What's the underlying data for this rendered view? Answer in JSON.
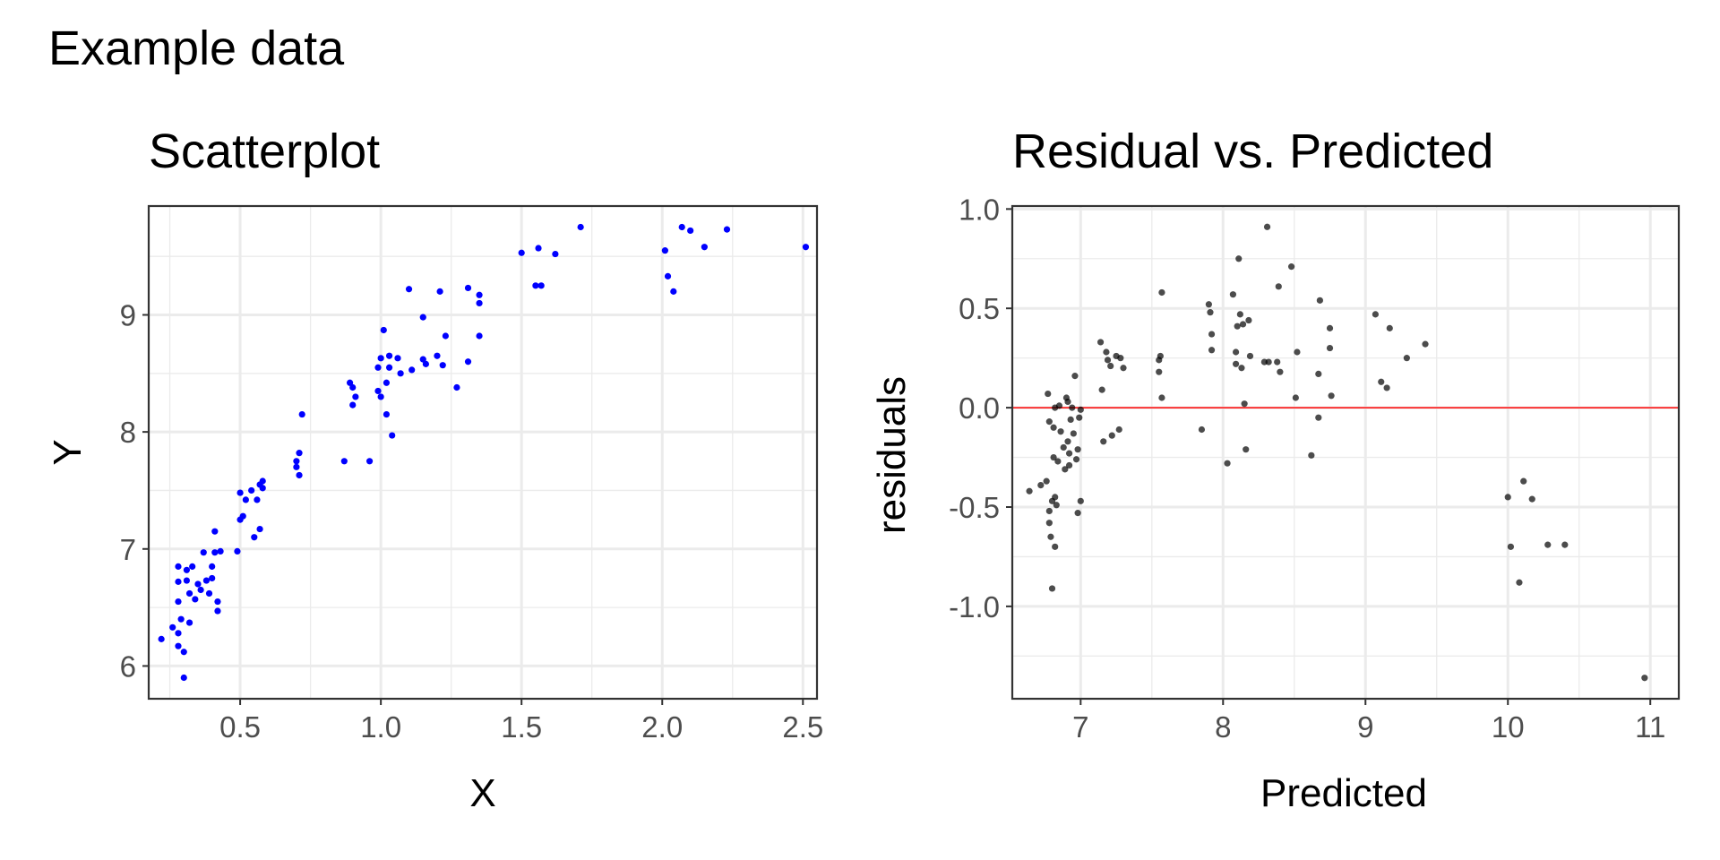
{
  "figure": {
    "title": "Example data"
  },
  "chart_data": [
    {
      "type": "scatter",
      "title": "Scatterplot",
      "xlabel": "X",
      "ylabel": "Y",
      "xlim": [
        0.175,
        2.55
      ],
      "ylim": [
        5.72,
        9.93
      ],
      "xticks": [
        0.5,
        1.0,
        1.5,
        2.0,
        2.5
      ],
      "xtick_labels": [
        "0.5",
        "1.0",
        "1.5",
        "2.0",
        "2.5"
      ],
      "yticks": [
        6,
        7,
        8,
        9
      ],
      "ytick_labels": [
        "6",
        "7",
        "8",
        "9"
      ],
      "grid": true,
      "point_color": "#0000ff",
      "points": [
        [
          0.22,
          6.23
        ],
        [
          0.26,
          6.33
        ],
        [
          0.28,
          6.85
        ],
        [
          0.28,
          6.72
        ],
        [
          0.28,
          6.55
        ],
        [
          0.28,
          6.28
        ],
        [
          0.28,
          6.17
        ],
        [
          0.29,
          6.4
        ],
        [
          0.3,
          5.9
        ],
        [
          0.3,
          6.12
        ],
        [
          0.31,
          6.82
        ],
        [
          0.31,
          6.73
        ],
        [
          0.32,
          6.62
        ],
        [
          0.32,
          6.37
        ],
        [
          0.33,
          6.85
        ],
        [
          0.34,
          6.57
        ],
        [
          0.35,
          6.7
        ],
        [
          0.36,
          6.65
        ],
        [
          0.37,
          6.97
        ],
        [
          0.38,
          6.73
        ],
        [
          0.39,
          6.62
        ],
        [
          0.4,
          6.85
        ],
        [
          0.4,
          6.75
        ],
        [
          0.41,
          7.15
        ],
        [
          0.41,
          6.97
        ],
        [
          0.42,
          6.47
        ],
        [
          0.42,
          6.55
        ],
        [
          0.43,
          6.98
        ],
        [
          0.49,
          6.98
        ],
        [
          0.5,
          7.25
        ],
        [
          0.5,
          7.48
        ],
        [
          0.51,
          7.28
        ],
        [
          0.52,
          7.42
        ],
        [
          0.54,
          7.5
        ],
        [
          0.55,
          7.1
        ],
        [
          0.56,
          7.42
        ],
        [
          0.57,
          7.17
        ],
        [
          0.57,
          7.55
        ],
        [
          0.58,
          7.58
        ],
        [
          0.58,
          7.52
        ],
        [
          0.7,
          7.75
        ],
        [
          0.7,
          7.7
        ],
        [
          0.71,
          7.82
        ],
        [
          0.71,
          7.63
        ],
        [
          0.72,
          8.15
        ],
        [
          0.87,
          7.75
        ],
        [
          0.89,
          8.42
        ],
        [
          0.9,
          8.38
        ],
        [
          0.9,
          8.23
        ],
        [
          0.91,
          8.3
        ],
        [
          0.96,
          7.75
        ],
        [
          0.99,
          8.55
        ],
        [
          0.99,
          8.35
        ],
        [
          1.0,
          8.63
        ],
        [
          1.0,
          8.3
        ],
        [
          1.01,
          8.87
        ],
        [
          1.02,
          8.42
        ],
        [
          1.02,
          8.15
        ],
        [
          1.03,
          8.55
        ],
        [
          1.03,
          8.65
        ],
        [
          1.04,
          7.97
        ],
        [
          1.06,
          8.63
        ],
        [
          1.07,
          8.5
        ],
        [
          1.1,
          9.22
        ],
        [
          1.11,
          8.53
        ],
        [
          1.15,
          8.98
        ],
        [
          1.15,
          8.62
        ],
        [
          1.16,
          8.58
        ],
        [
          1.2,
          8.65
        ],
        [
          1.21,
          9.2
        ],
        [
          1.22,
          8.57
        ],
        [
          1.23,
          8.82
        ],
        [
          1.27,
          8.38
        ],
        [
          1.31,
          8.6
        ],
        [
          1.31,
          9.23
        ],
        [
          1.35,
          9.17
        ],
        [
          1.35,
          9.1
        ],
        [
          1.35,
          8.82
        ],
        [
          1.5,
          9.53
        ],
        [
          1.55,
          9.25
        ],
        [
          1.56,
          9.57
        ],
        [
          1.57,
          9.25
        ],
        [
          1.62,
          9.52
        ],
        [
          1.71,
          9.75
        ],
        [
          2.01,
          9.55
        ],
        [
          2.02,
          9.33
        ],
        [
          2.04,
          9.2
        ],
        [
          2.07,
          9.75
        ],
        [
          2.1,
          9.72
        ],
        [
          2.15,
          9.58
        ],
        [
          2.23,
          9.73
        ],
        [
          2.51,
          9.58
        ]
      ]
    },
    {
      "type": "scatter",
      "title": "Residual vs. Predicted",
      "xlabel": "Predicted",
      "ylabel": "residuals",
      "xlim": [
        6.52,
        11.2
      ],
      "ylim": [
        -1.465,
        1.015
      ],
      "xticks": [
        7,
        8,
        9,
        10,
        11
      ],
      "xtick_labels": [
        "7",
        "8",
        "9",
        "10",
        "11"
      ],
      "yticks": [
        1.0,
        0.5,
        0.0,
        -0.5,
        -1.0
      ],
      "ytick_labels": [
        "1.0",
        "0.5",
        "0.0",
        "-0.5",
        "-1.0"
      ],
      "grid": true,
      "point_color": "#000000",
      "point_alpha": 0.7,
      "hline": {
        "y": 0,
        "color": "#ff0000"
      },
      "points": [
        [
          6.64,
          -0.42
        ],
        [
          6.72,
          -0.39
        ],
        [
          6.76,
          -0.37
        ],
        [
          6.77,
          0.07
        ],
        [
          6.78,
          -0.07
        ],
        [
          6.78,
          -0.52
        ],
        [
          6.78,
          -0.58
        ],
        [
          6.79,
          -0.65
        ],
        [
          6.8,
          -0.91
        ],
        [
          6.8,
          -0.47
        ],
        [
          6.81,
          -0.25
        ],
        [
          6.81,
          -0.1
        ],
        [
          6.82,
          0.0
        ],
        [
          6.82,
          -0.45
        ],
        [
          6.82,
          -0.7
        ],
        [
          6.83,
          -0.49
        ],
        [
          6.84,
          -0.27
        ],
        [
          6.85,
          0.01
        ],
        [
          6.86,
          -0.12
        ],
        [
          6.88,
          -0.2
        ],
        [
          6.89,
          -0.31
        ],
        [
          6.9,
          0.05
        ],
        [
          6.91,
          0.03
        ],
        [
          6.91,
          -0.17
        ],
        [
          6.92,
          -0.23
        ],
        [
          6.92,
          -0.29
        ],
        [
          6.93,
          -0.06
        ],
        [
          6.94,
          0.0
        ],
        [
          6.95,
          -0.13
        ],
        [
          6.96,
          0.16
        ],
        [
          6.97,
          -0.26
        ],
        [
          6.98,
          -0.21
        ],
        [
          6.98,
          -0.53
        ],
        [
          6.99,
          -0.05
        ],
        [
          7.0,
          -0.47
        ],
        [
          7.0,
          -0.01
        ],
        [
          7.14,
          0.33
        ],
        [
          7.15,
          0.09
        ],
        [
          7.16,
          -0.17
        ],
        [
          7.18,
          0.28
        ],
        [
          7.19,
          0.24
        ],
        [
          7.21,
          0.21
        ],
        [
          7.22,
          -0.14
        ],
        [
          7.25,
          0.26
        ],
        [
          7.27,
          -0.11
        ],
        [
          7.28,
          0.25
        ],
        [
          7.3,
          0.2
        ],
        [
          7.55,
          0.24
        ],
        [
          7.55,
          0.18
        ],
        [
          7.56,
          0.26
        ],
        [
          7.57,
          0.05
        ],
        [
          7.57,
          0.58
        ],
        [
          7.85,
          -0.11
        ],
        [
          7.9,
          0.52
        ],
        [
          7.91,
          0.48
        ],
        [
          7.92,
          0.29
        ],
        [
          7.92,
          0.37
        ],
        [
          8.03,
          -0.28
        ],
        [
          8.07,
          0.57
        ],
        [
          8.09,
          0.28
        ],
        [
          8.09,
          0.22
        ],
        [
          8.1,
          0.41
        ],
        [
          8.11,
          0.75
        ],
        [
          8.12,
          0.47
        ],
        [
          8.13,
          0.2
        ],
        [
          8.14,
          0.42
        ],
        [
          8.15,
          0.02
        ],
        [
          8.16,
          -0.21
        ],
        [
          8.18,
          0.44
        ],
        [
          8.19,
          0.26
        ],
        [
          8.29,
          0.23
        ],
        [
          8.31,
          0.91
        ],
        [
          8.32,
          0.23
        ],
        [
          8.38,
          0.23
        ],
        [
          8.39,
          0.61
        ],
        [
          8.4,
          0.18
        ],
        [
          8.48,
          0.71
        ],
        [
          8.51,
          0.05
        ],
        [
          8.52,
          0.28
        ],
        [
          8.62,
          -0.24
        ],
        [
          8.67,
          0.17
        ],
        [
          8.67,
          -0.05
        ],
        [
          8.68,
          0.54
        ],
        [
          8.75,
          0.4
        ],
        [
          8.75,
          0.3
        ],
        [
          8.76,
          0.06
        ],
        [
          9.07,
          0.47
        ],
        [
          9.11,
          0.13
        ],
        [
          9.15,
          0.1
        ],
        [
          9.17,
          0.4
        ],
        [
          9.29,
          0.25
        ],
        [
          9.42,
          0.32
        ],
        [
          10.0,
          -0.45
        ],
        [
          10.02,
          -0.7
        ],
        [
          10.08,
          -0.88
        ],
        [
          10.11,
          -0.37
        ],
        [
          10.17,
          -0.46
        ],
        [
          10.28,
          -0.69
        ],
        [
          10.4,
          -0.69
        ],
        [
          10.96,
          -1.36
        ]
      ]
    }
  ]
}
